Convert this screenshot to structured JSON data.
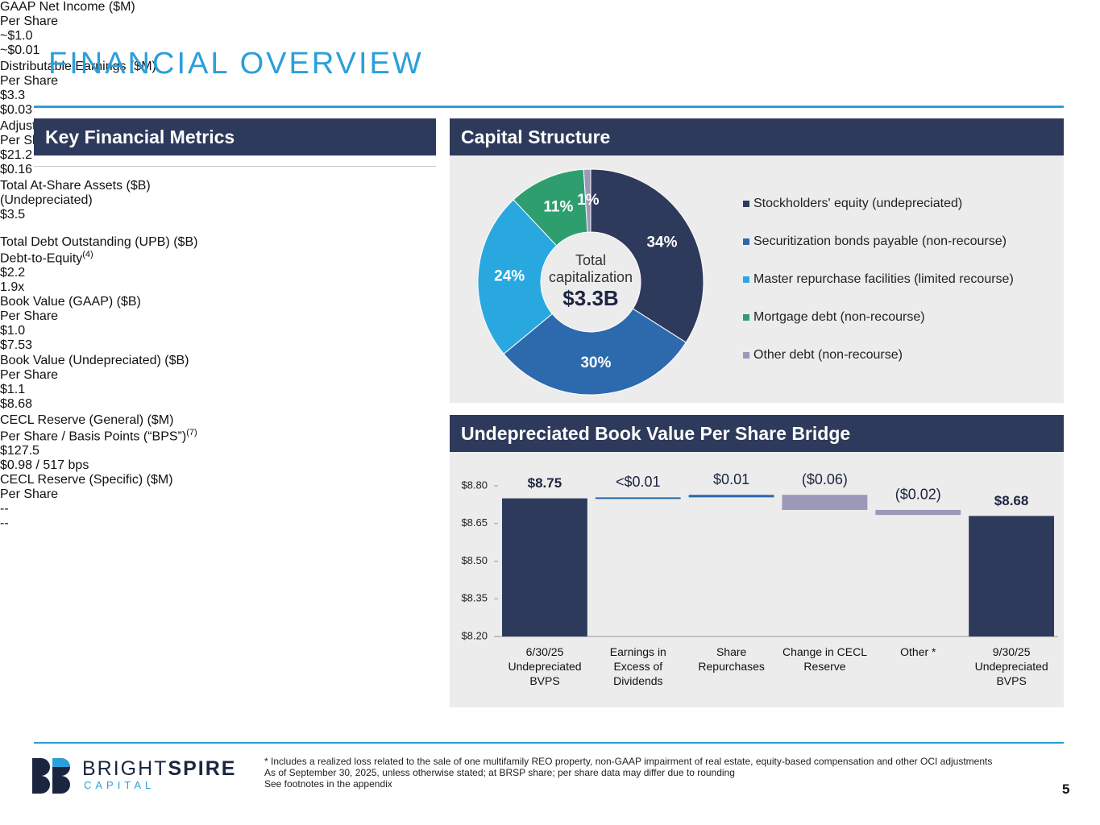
{
  "title": "FINANCIAL OVERVIEW",
  "metrics": {
    "heading": "Key Financial Metrics",
    "rows": [
      {
        "label": "GAAP Net Income ($M)",
        "value": "~$1.0",
        "sublabel": "Per Share",
        "subvalue": "~$0.01"
      },
      {
        "label": "Distributable Earnings ($M)",
        "value": "$3.3",
        "sublabel": "Per Share",
        "subvalue": "$0.03"
      },
      {
        "label": "Adjusted Distributable Earnings ($M)",
        "value": "$21.2",
        "sublabel": "Per Share",
        "subvalue": "$0.16"
      },
      {
        "label": "Total At-Share Assets ($B)",
        "value": "$3.5",
        "sublabel": "(Undepreciated)"
      },
      {
        "label": "Total Debt Outstanding (UPB) ($B)",
        "value": "$2.2",
        "sublabel": "Debt-to-Equity",
        "sup": "(4)",
        "subvalue": "1.9x"
      },
      {
        "label": "Book Value (GAAP) ($B)",
        "value": "$1.0",
        "sublabel": "Per Share",
        "subvalue": "$7.53"
      },
      {
        "label": "Book Value (Undepreciated) ($B)",
        "value": "$1.1",
        "sublabel": "Per Share",
        "subvalue": "$8.68"
      },
      {
        "label": "CECL Reserve (General) ($M)",
        "value": "$127.5",
        "sublabel": "Per Share / Basis Points (“BPS”)",
        "sup": "(7)",
        "subvalue": "$0.98 / 517 bps"
      },
      {
        "label": "CECL Reserve (Specific) ($M)",
        "value": "--",
        "sublabel": "Per Share",
        "subvalue": "--"
      }
    ]
  },
  "chart_data": [
    {
      "type": "pie",
      "title": "Capital Structure",
      "categories": [
        "Stockholders' equity (undepreciated)",
        "Securitization bonds payable (non-recourse)",
        "Master repurchase facilities (limited recourse)",
        "Mortgage debt (non-recourse)",
        "Other debt (non-recourse)"
      ],
      "values": [
        34,
        30,
        24,
        11,
        1
      ],
      "value_labels": [
        "34%",
        "30%",
        "24%",
        "11%",
        "1%"
      ],
      "colors": [
        "#2e3a5c",
        "#2c6aad",
        "#29a8e0",
        "#2e9e6e",
        "#9b98b8"
      ],
      "center_label": "Total capitalization",
      "center_value": "$3.3B"
    },
    {
      "type": "waterfall",
      "title": "Undepreciated Book Value Per Share Bridge",
      "categories": [
        "6/30/25 Undepreciated BVPS",
        "Earnings in Excess of Dividends",
        "Share Repurchases",
        "Change in CECL Reserve",
        "Other *",
        "9/30/25 Undepreciated BVPS"
      ],
      "values": [
        8.75,
        0.004,
        0.01,
        -0.06,
        -0.02,
        8.68
      ],
      "value_labels": [
        "$8.75",
        "<$0.01",
        "$0.01",
        "($0.06)",
        "($0.02)",
        "$8.68"
      ],
      "measure": [
        "absolute",
        "relative",
        "relative",
        "relative",
        "relative",
        "absolute"
      ],
      "colors": {
        "total": "#2e3a5c",
        "increase": "#2c6aad",
        "decrease": "#9b98b8"
      },
      "ylim": [
        8.2,
        8.8
      ],
      "yticks": [
        {
          "value": 8.2,
          "label": "$8.20"
        },
        {
          "value": 8.35,
          "label": "$8.35"
        },
        {
          "value": 8.5,
          "label": "$8.50"
        },
        {
          "value": 8.65,
          "label": "$8.65"
        },
        {
          "value": 8.8,
          "label": "$8.80"
        }
      ]
    }
  ],
  "logo": {
    "word1": "BRIGHT",
    "word2": "SPIRE",
    "sub": "CAPITAL"
  },
  "footnotes": [
    "* Includes a realized loss related to the sale of one multifamily REO property, non-GAAP impairment of real estate, equity-based compensation and other OCI adjustments",
    "As of September 30, 2025, unless otherwise stated; at BRSP share; per share data may differ due to rounding",
    "See footnotes in the appendix"
  ],
  "page_number": "5"
}
